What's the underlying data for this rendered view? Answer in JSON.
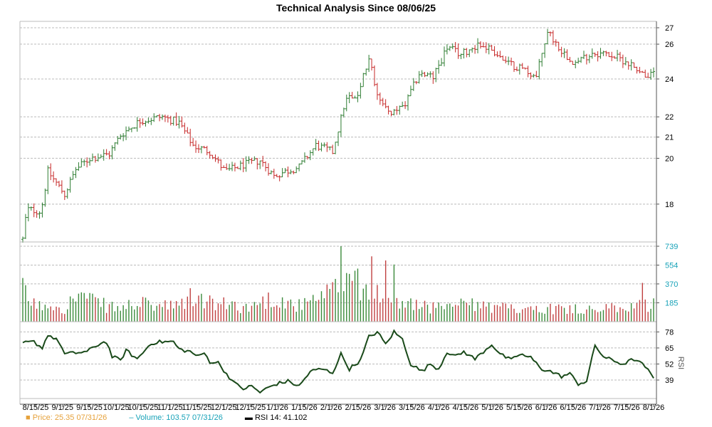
{
  "chart_data": {
    "type": "ohlc",
    "title": "Technical Analysis Since 08/06/25",
    "price_panel": {
      "y_ticks": [
        18,
        20,
        21,
        22,
        24,
        26,
        27
      ],
      "y_scale": "log",
      "ylim": [
        16.5,
        27.4
      ],
      "grid": true
    },
    "volume_panel": {
      "y_ticks": [
        185,
        370,
        554,
        739
      ],
      "ylim": [
        0,
        739
      ],
      "colors": {
        "up": "#3a8a3a",
        "down": "#c04040"
      }
    },
    "rsi_panel": {
      "label": "RSI",
      "y_ticks": [
        39,
        52,
        65,
        78
      ],
      "ylim": [
        24,
        84
      ],
      "line_color": "#1a4a1a"
    },
    "x_ticks": [
      "8/15/25",
      "9/1/25",
      "9/15/25",
      "10/1/25",
      "10/15/25",
      "11/1/25",
      "11/15/25",
      "12/1/25",
      "12/15/25",
      "1/1/26",
      "1/15/26",
      "2/1/26",
      "2/15/26",
      "3/1/26",
      "3/15/26",
      "4/1/26",
      "4/15/26",
      "5/1/26",
      "5/15/26",
      "6/1/26",
      "6/15/26",
      "7/1/26",
      "7/15/26",
      "8/1/26"
    ],
    "price_anchors": [
      [
        0,
        16.6
      ],
      [
        3,
        17.8
      ],
      [
        12,
        17.7
      ],
      [
        14,
        18.0
      ],
      [
        18,
        19.4
      ],
      [
        30,
        18.4
      ],
      [
        38,
        19.5
      ],
      [
        48,
        20.0
      ],
      [
        62,
        20.2
      ],
      [
        70,
        21.1
      ],
      [
        84,
        21.8
      ],
      [
        100,
        22.0
      ],
      [
        112,
        21.7
      ],
      [
        122,
        20.6
      ],
      [
        134,
        20.3
      ],
      [
        145,
        19.4
      ],
      [
        158,
        19.7
      ],
      [
        170,
        19.9
      ],
      [
        180,
        19.2
      ],
      [
        188,
        19.4
      ],
      [
        198,
        19.6
      ],
      [
        210,
        20.6
      ],
      [
        222,
        20.3
      ],
      [
        232,
        23.0
      ],
      [
        240,
        23.1
      ],
      [
        248,
        25.1
      ],
      [
        256,
        22.7
      ],
      [
        264,
        22.1
      ],
      [
        274,
        22.6
      ],
      [
        284,
        24.3
      ],
      [
        294,
        24.1
      ],
      [
        304,
        25.8
      ],
      [
        314,
        25.4
      ],
      [
        326,
        26.0
      ],
      [
        336,
        25.7
      ],
      [
        346,
        24.9
      ],
      [
        358,
        24.6
      ],
      [
        368,
        24.1
      ],
      [
        376,
        26.8
      ],
      [
        386,
        25.6
      ],
      [
        396,
        24.9
      ],
      [
        408,
        25.5
      ],
      [
        420,
        25.4
      ],
      [
        432,
        25.0
      ],
      [
        440,
        24.6
      ],
      [
        446,
        24.2
      ]
    ],
    "volume_anchors": [
      [
        0,
        330
      ],
      [
        10,
        160
      ],
      [
        20,
        200
      ],
      [
        30,
        150
      ],
      [
        40,
        300
      ],
      [
        50,
        220
      ],
      [
        60,
        170
      ],
      [
        70,
        140
      ],
      [
        80,
        200
      ],
      [
        90,
        180
      ],
      [
        100,
        170
      ],
      [
        110,
        160
      ],
      [
        120,
        260
      ],
      [
        130,
        230
      ],
      [
        140,
        180
      ],
      [
        150,
        190
      ],
      [
        160,
        150
      ],
      [
        170,
        210
      ],
      [
        180,
        260
      ],
      [
        190,
        200
      ],
      [
        200,
        170
      ],
      [
        210,
        230
      ],
      [
        220,
        300
      ],
      [
        230,
        450
      ],
      [
        240,
        380
      ],
      [
        250,
        440
      ],
      [
        260,
        270
      ],
      [
        270,
        220
      ],
      [
        280,
        180
      ],
      [
        290,
        160
      ],
      [
        300,
        150
      ],
      [
        310,
        180
      ],
      [
        320,
        190
      ],
      [
        330,
        160
      ],
      [
        340,
        150
      ],
      [
        350,
        140
      ],
      [
        360,
        150
      ],
      [
        370,
        160
      ],
      [
        380,
        140
      ],
      [
        390,
        150
      ],
      [
        400,
        140
      ],
      [
        410,
        130
      ],
      [
        420,
        150
      ],
      [
        430,
        130
      ],
      [
        440,
        220
      ],
      [
        446,
        180
      ]
    ],
    "volume_spikes": [
      [
        228,
        739
      ],
      [
        250,
        640
      ],
      [
        260,
        600
      ],
      [
        240,
        520
      ],
      [
        266,
        560
      ],
      [
        444,
        380
      ]
    ],
    "rsi_anchors": [
      [
        0,
        69
      ],
      [
        8,
        70
      ],
      [
        14,
        65
      ],
      [
        18,
        76
      ],
      [
        26,
        70
      ],
      [
        30,
        60
      ],
      [
        38,
        61
      ],
      [
        46,
        62
      ],
      [
        56,
        69
      ],
      [
        60,
        70
      ],
      [
        64,
        58
      ],
      [
        70,
        55
      ],
      [
        74,
        63
      ],
      [
        82,
        56
      ],
      [
        92,
        69
      ],
      [
        100,
        70
      ],
      [
        108,
        70
      ],
      [
        112,
        64
      ],
      [
        120,
        62
      ],
      [
        126,
        58
      ],
      [
        130,
        61
      ],
      [
        134,
        54
      ],
      [
        140,
        53
      ],
      [
        146,
        44
      ],
      [
        152,
        36
      ],
      [
        158,
        32
      ],
      [
        164,
        34
      ],
      [
        170,
        29
      ],
      [
        176,
        33
      ],
      [
        182,
        36
      ],
      [
        190,
        38
      ],
      [
        198,
        34
      ],
      [
        206,
        46
      ],
      [
        214,
        48
      ],
      [
        222,
        45
      ],
      [
        228,
        60
      ],
      [
        234,
        48
      ],
      [
        242,
        55
      ],
      [
        248,
        74
      ],
      [
        254,
        78
      ],
      [
        260,
        68
      ],
      [
        266,
        78
      ],
      [
        272,
        72
      ],
      [
        278,
        52
      ],
      [
        286,
        46
      ],
      [
        292,
        52
      ],
      [
        298,
        48
      ],
      [
        304,
        62
      ],
      [
        310,
        58
      ],
      [
        316,
        62
      ],
      [
        324,
        56
      ],
      [
        330,
        62
      ],
      [
        336,
        68
      ],
      [
        342,
        60
      ],
      [
        350,
        55
      ],
      [
        356,
        60
      ],
      [
        364,
        57
      ],
      [
        372,
        48
      ],
      [
        378,
        46
      ],
      [
        386,
        42
      ],
      [
        392,
        44
      ],
      [
        398,
        36
      ],
      [
        404,
        38
      ],
      [
        410,
        67
      ],
      [
        416,
        58
      ],
      [
        422,
        55
      ],
      [
        430,
        52
      ],
      [
        438,
        56
      ],
      [
        446,
        50
      ],
      [
        452,
        40
      ]
    ],
    "legend": {
      "price": "Price: 25.35  07/31/26",
      "volume": "Volume: 103.57  07/31/26",
      "rsi": "RSI 14: 41.102"
    }
  }
}
